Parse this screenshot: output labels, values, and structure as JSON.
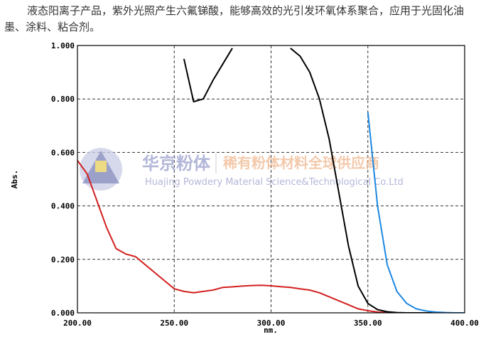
{
  "intro": "液态阳离子产品，紫外光照产生六氟锑酸，能够高效的光引发环氧体系聚合，应用于光固化油墨、涂料、粘合剂。",
  "watermark": {
    "brand": "华京粉体",
    "slogan": "稀有粉体材料全球供应商",
    "company": "Huajing Powdery Material Science&Technological Co.Ltd"
  },
  "chart_data": {
    "type": "line",
    "x_label": "nm.",
    "y_label": "Abs.",
    "x": [
      200,
      205,
      210,
      215,
      220,
      225,
      230,
      235,
      240,
      245,
      250,
      255,
      260,
      265,
      270,
      275,
      280,
      285,
      290,
      295,
      300,
      305,
      310,
      315,
      320,
      325,
      330,
      335,
      340,
      345,
      350,
      355,
      360,
      365,
      370,
      375,
      380,
      385,
      390,
      395,
      400
    ],
    "series": [
      {
        "color": "#d42020",
        "values": [
          0.57,
          0.52,
          0.42,
          0.32,
          0.24,
          0.22,
          0.21,
          0.18,
          0.15,
          0.12,
          0.09,
          0.08,
          0.075,
          0.08,
          0.085,
          0.095,
          0.097,
          0.1,
          0.102,
          0.103,
          0.101,
          0.098,
          0.095,
          0.09,
          0.085,
          0.075,
          0.06,
          0.045,
          0.03,
          0.015,
          0.008,
          0.003,
          0.001,
          0,
          null,
          null,
          null,
          null,
          null,
          null,
          null
        ]
      },
      {
        "color": "#000000",
        "values": [
          null,
          null,
          null,
          null,
          null,
          null,
          null,
          null,
          null,
          null,
          null,
          0.95,
          0.79,
          0.8,
          0.87,
          0.93,
          0.99,
          null,
          null,
          null,
          null,
          null,
          0.99,
          0.96,
          0.9,
          0.8,
          0.65,
          0.45,
          0.25,
          0.1,
          0.035,
          0.012,
          0.004,
          0.001,
          0,
          0,
          0,
          0,
          0,
          0,
          0
        ]
      },
      {
        "color": "#1e88e0",
        "values": [
          null,
          null,
          null,
          null,
          null,
          null,
          null,
          null,
          null,
          null,
          null,
          null,
          null,
          null,
          null,
          null,
          null,
          null,
          null,
          null,
          null,
          null,
          null,
          null,
          null,
          null,
          null,
          null,
          null,
          null,
          0.75,
          0.4,
          0.18,
          0.08,
          0.035,
          0.015,
          0.007,
          0.003,
          0.001,
          0,
          0
        ]
      }
    ],
    "xlim": [
      200,
      400
    ],
    "xticks": [
      {
        "value": 200,
        "label": "200.00"
      },
      {
        "value": 250,
        "label": "250.00"
      },
      {
        "value": 300,
        "label": "300.00"
      },
      {
        "value": 350,
        "label": "350.00"
      },
      {
        "value": 400,
        "label": "400.00"
      }
    ],
    "ylim": [
      0,
      1
    ],
    "yticks": [
      {
        "value": 0,
        "label": "0.000"
      },
      {
        "value": 0.2,
        "label": "0.200"
      },
      {
        "value": 0.4,
        "label": "0.400"
      },
      {
        "value": 0.6,
        "label": "0.600"
      },
      {
        "value": 0.8,
        "label": "0.800"
      },
      {
        "value": 1,
        "label": "1.000"
      }
    ],
    "grid": true
  }
}
